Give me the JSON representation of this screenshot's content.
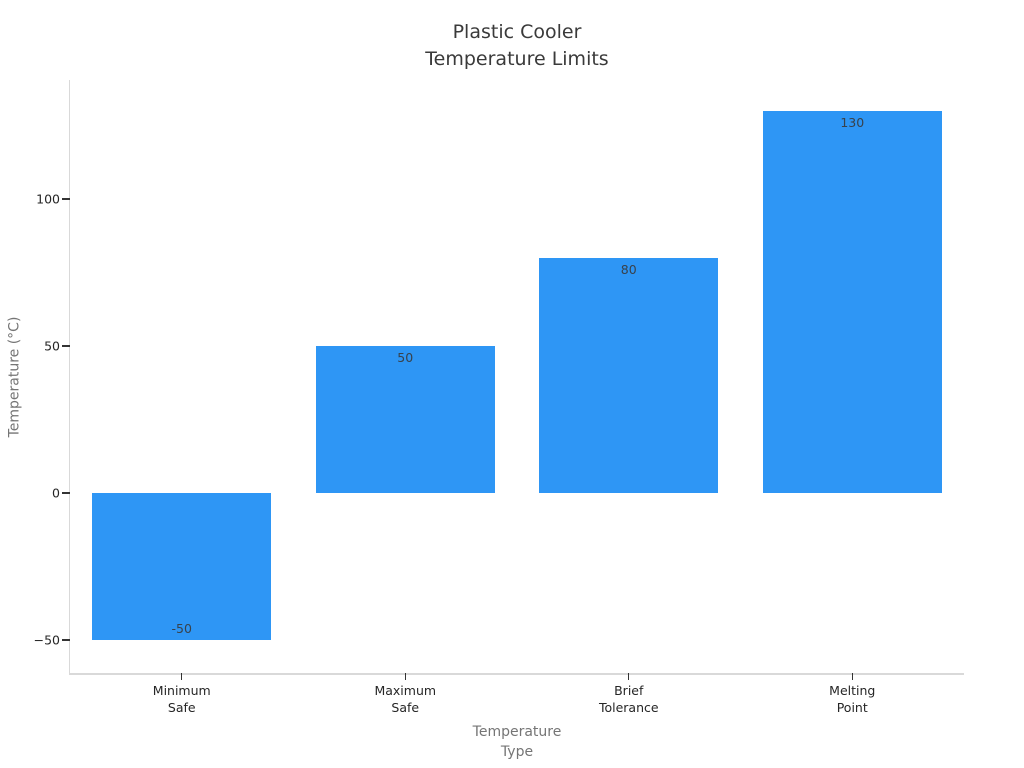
{
  "chart_data": {
    "type": "bar",
    "title": "Plastic Cooler\nTemperature Limits",
    "xlabel": "Temperature\nType",
    "ylabel": "Temperature (°C)",
    "categories": [
      "Minimum\nSafe",
      "Maximum\nSafe",
      "Brief\nTolerance",
      "Melting\nPoint"
    ],
    "values": [
      -50,
      50,
      80,
      130
    ],
    "bar_labels": [
      "-50",
      "50",
      "80",
      "130"
    ],
    "yticks": [
      {
        "value": -50,
        "label": "−50"
      },
      {
        "value": 0,
        "label": "0"
      },
      {
        "value": 50,
        "label": "50"
      },
      {
        "value": 100,
        "label": "100"
      }
    ],
    "ylim": [
      -61.2,
      140.5
    ],
    "bar_width_fraction": 0.8,
    "grid": false,
    "legend": null,
    "colors": {
      "bar": "#2e96f5",
      "spine": "#d9d9d9",
      "tick": "#333333",
      "tick_label": "#262626",
      "axis_label": "#757575",
      "title": "#3a3a3a",
      "value_label": "#38424c",
      "background": "#ffffff"
    }
  }
}
